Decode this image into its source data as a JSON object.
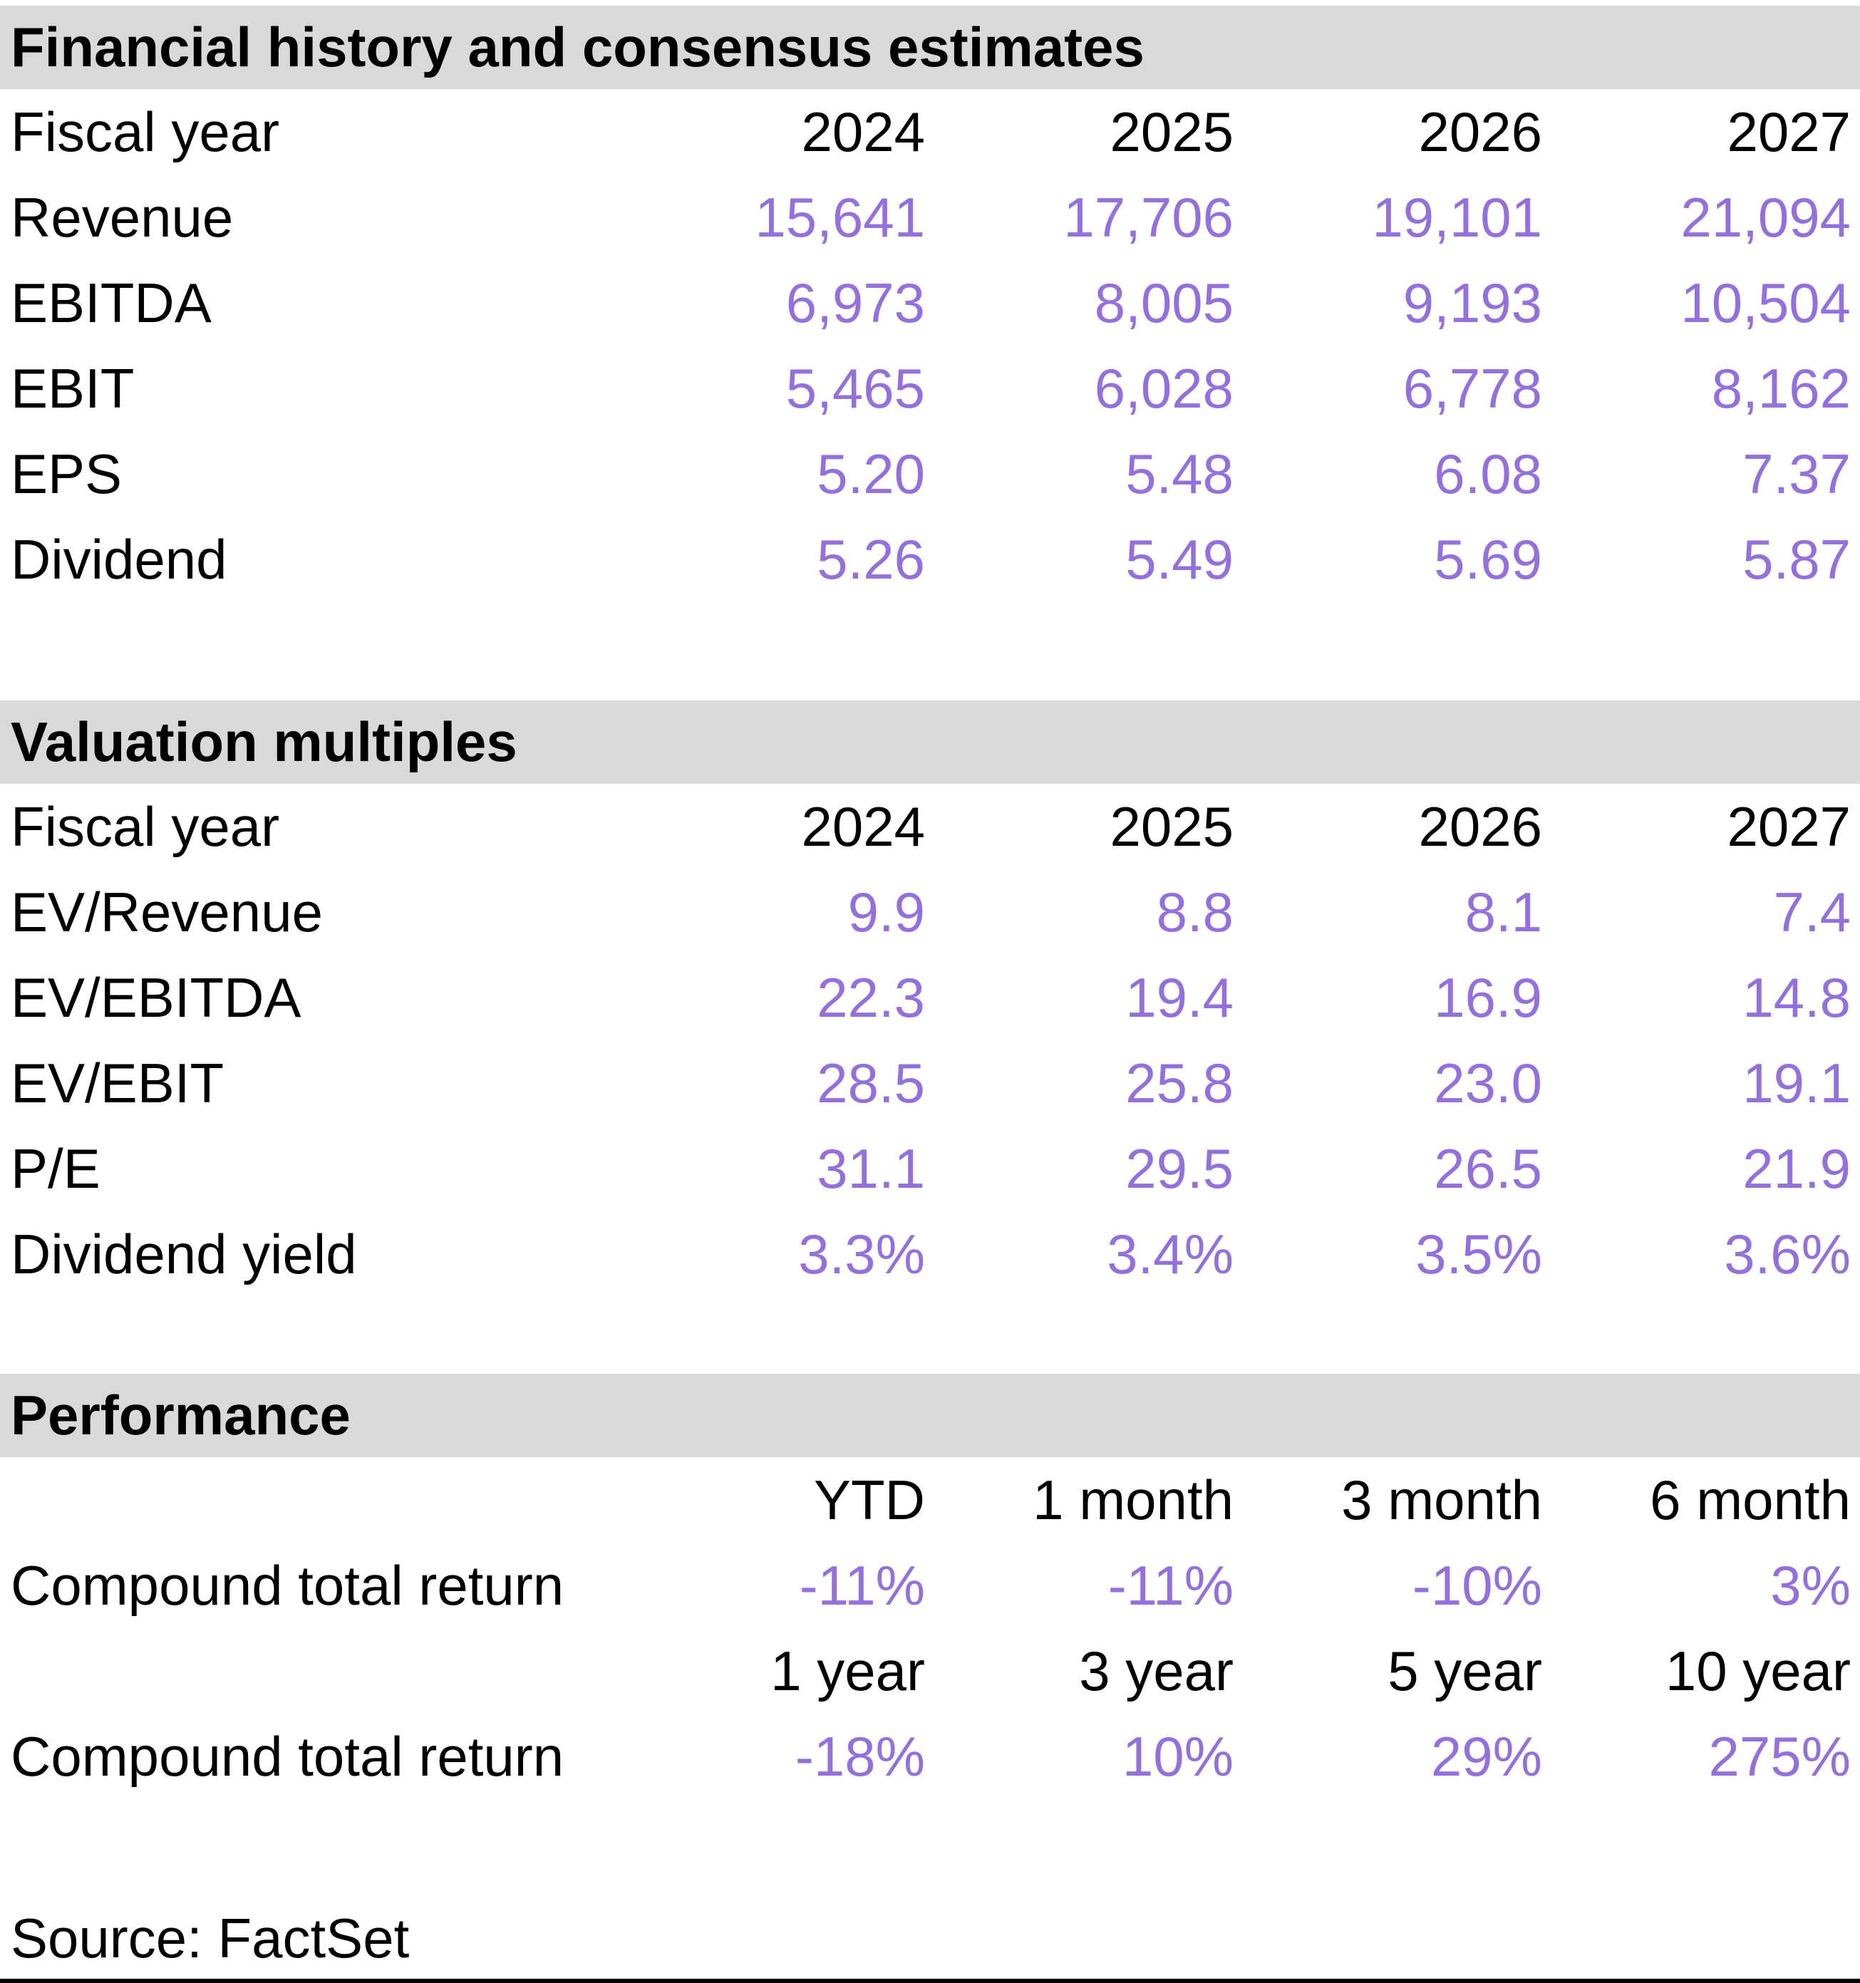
{
  "colors": {
    "accent_purple": "#9370DB",
    "section_header_bg": "#d9d9d9",
    "text": "#000000"
  },
  "financial_history": {
    "title": "Financial history and consensus estimates",
    "fiscal_year_label": "Fiscal year",
    "years": [
      "2024",
      "2025",
      "2026",
      "2027"
    ],
    "rows": [
      {
        "label": "Revenue",
        "values": [
          "15,641",
          "17,706",
          "19,101",
          "21,094"
        ]
      },
      {
        "label": "EBITDA",
        "values": [
          "6,973",
          "8,005",
          "9,193",
          "10,504"
        ]
      },
      {
        "label": "EBIT",
        "values": [
          "5,465",
          "6,028",
          "6,778",
          "8,162"
        ]
      },
      {
        "label": "EPS",
        "values": [
          "5.20",
          "5.48",
          "6.08",
          "7.37"
        ]
      },
      {
        "label": "Dividend",
        "values": [
          "5.26",
          "5.49",
          "5.69",
          "5.87"
        ]
      }
    ]
  },
  "valuation_multiples": {
    "title": "Valuation multiples",
    "fiscal_year_label": "Fiscal year",
    "years": [
      "2024",
      "2025",
      "2026",
      "2027"
    ],
    "rows": [
      {
        "label": "EV/Revenue",
        "values": [
          "9.9",
          "8.8",
          "8.1",
          "7.4"
        ]
      },
      {
        "label": "EV/EBITDA",
        "values": [
          "22.3",
          "19.4",
          "16.9",
          "14.8"
        ]
      },
      {
        "label": "EV/EBIT",
        "values": [
          "28.5",
          "25.8",
          "23.0",
          "19.1"
        ]
      },
      {
        "label": "P/E",
        "values": [
          "31.1",
          "29.5",
          "26.5",
          "21.9"
        ]
      },
      {
        "label": "Dividend yield",
        "values": [
          "3.3%",
          "3.4%",
          "3.5%",
          "3.6%"
        ]
      }
    ]
  },
  "performance": {
    "title": "Performance",
    "blocks": [
      {
        "periods": [
          "YTD",
          "1 month",
          "3 month",
          "6 month"
        ],
        "label": "Compound total return",
        "values": [
          "-11%",
          "-11%",
          "-10%",
          "3%"
        ]
      },
      {
        "periods": [
          "1 year",
          "3 year",
          "5 year",
          "10 year"
        ],
        "label": "Compound total return",
        "values": [
          "-18%",
          "10%",
          "29%",
          "275%"
        ]
      }
    ]
  },
  "source": "Source: FactSet"
}
